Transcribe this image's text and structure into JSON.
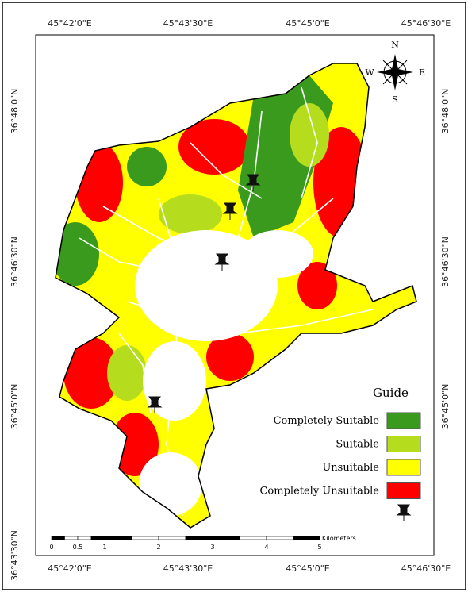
{
  "map": {
    "top_labels": [
      "45°42'0\"E",
      "45°43'30\"E",
      "45°45'0\"E",
      "45°46'30\"E"
    ],
    "bottom_labels": [
      "45°42'0\"E",
      "45°43'30\"E",
      "45°45'0\"E",
      "45°46'30\"E"
    ],
    "left_labels": [
      "36°48'0\"N",
      "36°46'30\"N",
      "36°45'0\"N",
      "36°43'30\"N"
    ],
    "right_labels": [
      "36°48'0\"N",
      "36°46'30\"N",
      "36°45'0\"N"
    ],
    "compass": {
      "n": "N",
      "e": "E",
      "s": "S",
      "w": "W"
    },
    "legend": {
      "title": "Guide",
      "items": [
        {
          "label": "Completely Suitable",
          "color": "#3a9a1e"
        },
        {
          "label": "Suitable",
          "color": "#b5dd1e"
        },
        {
          "label": "Unsuitable",
          "color": "#ffff00"
        },
        {
          "label": "Completely Unsuitable",
          "color": "#ff0000"
        }
      ]
    },
    "scale": {
      "labels": [
        "0",
        "0.5",
        "1",
        "2",
        "3",
        "4",
        "5"
      ],
      "unit": "Kilometers"
    }
  }
}
